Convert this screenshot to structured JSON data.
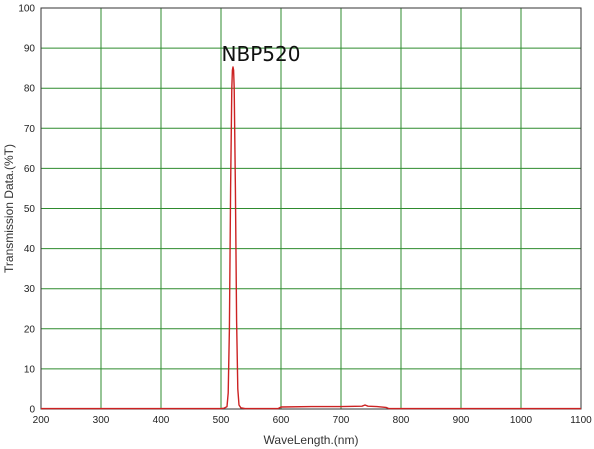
{
  "chart_data": {
    "type": "line",
    "title": "",
    "xlabel": "WaveLength.(nm)",
    "ylabel": "Transmission Data.(%T)",
    "xlim": [
      200,
      1100
    ],
    "ylim": [
      0,
      100
    ],
    "x_ticks": [
      200,
      300,
      400,
      500,
      600,
      700,
      800,
      900,
      1000,
      1100
    ],
    "y_ticks": [
      0,
      10,
      20,
      30,
      40,
      50,
      60,
      70,
      80,
      90,
      100
    ],
    "grid": true,
    "annotation": "NBP520",
    "series": [
      {
        "color": "#cc2222",
        "points": [
          [
            200,
            0.1
          ],
          [
            300,
            0.1
          ],
          [
            400,
            0.1
          ],
          [
            500,
            0.1
          ],
          [
            505,
            0.2
          ],
          [
            510,
            0.6
          ],
          [
            512,
            4
          ],
          [
            514,
            20
          ],
          [
            516,
            55
          ],
          [
            518,
            80
          ],
          [
            519,
            84.5
          ],
          [
            520,
            85.3
          ],
          [
            521,
            84.5
          ],
          [
            522,
            80
          ],
          [
            524,
            55
          ],
          [
            526,
            22
          ],
          [
            528,
            5
          ],
          [
            530,
            1
          ],
          [
            533,
            0.3
          ],
          [
            540,
            0.1
          ],
          [
            595,
            0.1
          ],
          [
            600,
            0.5
          ],
          [
            650,
            0.6
          ],
          [
            700,
            0.6
          ],
          [
            735,
            0.7
          ],
          [
            740,
            1.0
          ],
          [
            745,
            0.7
          ],
          [
            760,
            0.6
          ],
          [
            775,
            0.4
          ],
          [
            780,
            0.1
          ],
          [
            800,
            0.1
          ],
          [
            900,
            0.1
          ],
          [
            1000,
            0.1
          ],
          [
            1100,
            0.1
          ]
        ]
      }
    ]
  },
  "colors": {
    "grid": "#2e8b2e",
    "frame": "#333333",
    "line": "#cc2222"
  }
}
